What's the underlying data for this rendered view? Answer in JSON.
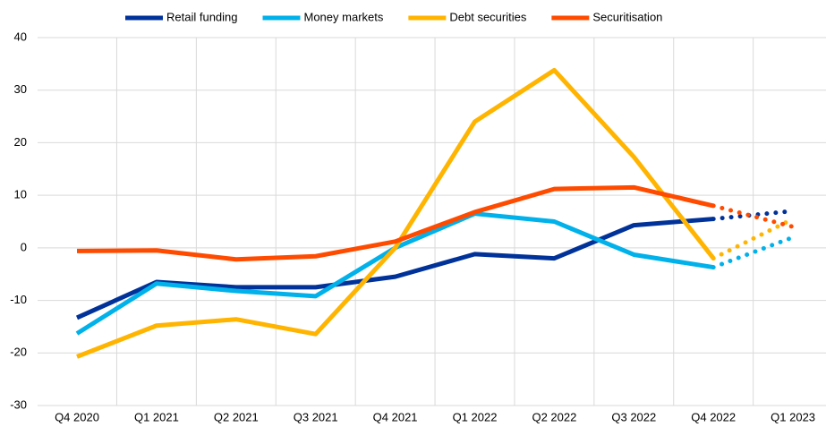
{
  "chart_data": {
    "type": "line",
    "categories": [
      "Q4 2020",
      "Q1 2021",
      "Q2 2021",
      "Q3 2021",
      "Q4 2021",
      "Q1 2022",
      "Q2 2022",
      "Q3 2022",
      "Q4 2022",
      "Q1 2023"
    ],
    "series": [
      {
        "name": "Retail funding",
        "color": "#003299",
        "values": [
          -13.3,
          -6.5,
          -7.5,
          -7.5,
          -5.5,
          -1.2,
          -2,
          4.3,
          5.5,
          7
        ]
      },
      {
        "name": "Money markets",
        "color": "#00b1ea",
        "values": [
          -16.3,
          -6.8,
          -8.2,
          -9.2,
          0,
          6.5,
          5,
          -1.3,
          -3.7,
          2
        ]
      },
      {
        "name": "Debt securities",
        "color": "#ffb400",
        "values": [
          -20.7,
          -14.8,
          -13.6,
          -16.4,
          0,
          24,
          33.8,
          17.3,
          -2,
          5.5
        ]
      },
      {
        "name": "Securitisation",
        "color": "#ff4b00",
        "values": [
          -0.6,
          -0.5,
          -2.2,
          -1.6,
          1.2,
          6.8,
          11.2,
          11.5,
          8,
          4
        ]
      }
    ],
    "projected_points": 1,
    "ylim": [
      -30,
      40
    ],
    "yticks": [
      -30,
      -20,
      -10,
      0,
      10,
      20,
      30,
      40
    ],
    "grid": true,
    "legend": "top"
  }
}
